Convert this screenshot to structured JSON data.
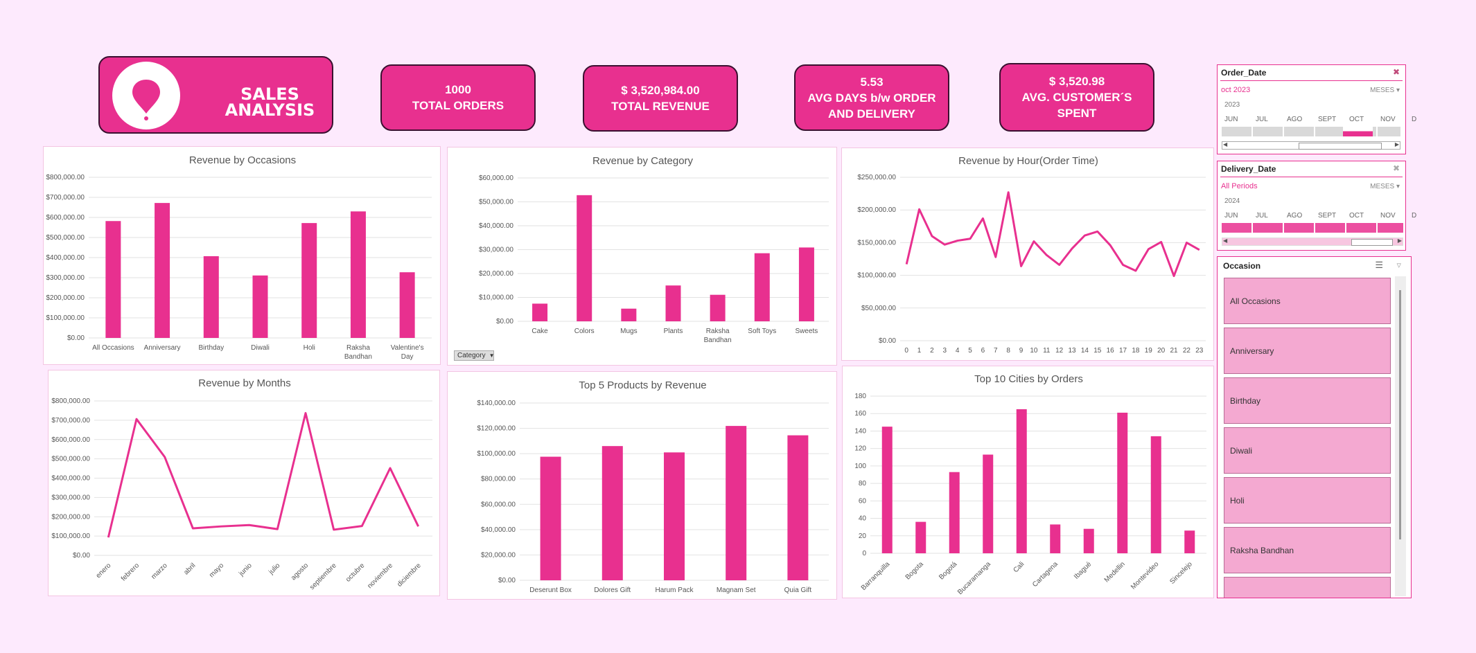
{
  "header": {
    "title": "SALES ANALYSIS",
    "colors": {
      "accent": "#e8308f",
      "background": "#fdeafd",
      "dark_border": "#3a1030"
    },
    "logo_icon": "map-pin-icon"
  },
  "kpis": {
    "orders": {
      "value": "1000",
      "label": "TOTAL ORDERS"
    },
    "revenue": {
      "value": "$ 3,520,984.00",
      "label": "TOTAL REVENUE"
    },
    "days": {
      "value": "5.53",
      "label1": "AVG DAYS b/w ORDER",
      "label2": "AND DELIVERY"
    },
    "spent": {
      "value": "$ 3,520.98",
      "label1": "AVG. CUSTOMER´S",
      "label2": "SPENT"
    }
  },
  "chart_data": [
    {
      "id": "occasions",
      "type": "bar",
      "title": "Revenue by Occasions",
      "categories": [
        "All Occasions",
        "Anniversary",
        "Birthday",
        "Diwali",
        "Holi",
        "Raksha Bandhan",
        "Valentine's Day"
      ],
      "values": [
        582000,
        672000,
        407000,
        311000,
        572000,
        630000,
        327000
      ],
      "yticks": [
        "$0.00",
        "$100,000.00",
        "$200,000.00",
        "$300,000.00",
        "$400,000.00",
        "$500,000.00",
        "$600,000.00",
        "$700,000.00",
        "$800,000.00"
      ],
      "ylim": [
        0,
        800000
      ]
    },
    {
      "id": "category",
      "type": "bar",
      "title": "Revenue by Category",
      "categories": [
        "Cake",
        "Colors",
        "Mugs",
        "Plants",
        "Raksha Bandhan",
        "Soft Toys",
        "Sweets"
      ],
      "values": [
        7400,
        52800,
        5300,
        15000,
        11100,
        28500,
        30900
      ],
      "yticks": [
        "$0.00",
        "$10,000.00",
        "$20,000.00",
        "$30,000.00",
        "$40,000.00",
        "$50,000.00",
        "$60,000.00"
      ],
      "ylim": [
        0,
        60000
      ],
      "filter_button": "Category"
    },
    {
      "id": "hour",
      "type": "line",
      "title": "Revenue by Hour(Order Time)",
      "categories": [
        "0",
        "1",
        "2",
        "3",
        "4",
        "5",
        "6",
        "7",
        "8",
        "9",
        "10",
        "11",
        "12",
        "13",
        "14",
        "15",
        "16",
        "17",
        "18",
        "19",
        "20",
        "21",
        "22",
        "23"
      ],
      "values": [
        117000,
        201000,
        160000,
        147000,
        153000,
        156000,
        187000,
        128000,
        227000,
        114000,
        152000,
        131000,
        116000,
        141000,
        161000,
        167000,
        146000,
        116000,
        107000,
        140000,
        151000,
        99000,
        150000,
        139000
      ],
      "yticks": [
        "$0.00",
        "$50,000.00",
        "$100,000.00",
        "$150,000.00",
        "$200,000.00",
        "$250,000.00"
      ],
      "ylim": [
        0,
        250000
      ]
    },
    {
      "id": "months",
      "type": "line",
      "title": "Revenue by Months",
      "categories": [
        "enero",
        "febrero",
        "marzo",
        "abril",
        "mayo",
        "junio",
        "julio",
        "agosto",
        "septiembre",
        "octubre",
        "noviembre",
        "diciembre"
      ],
      "values": [
        93000,
        706000,
        510000,
        140000,
        150000,
        157000,
        136000,
        737000,
        133000,
        152000,
        452000,
        150000
      ],
      "yticks": [
        "$0.00",
        "$100,000.00",
        "$200,000.00",
        "$300,000.00",
        "$400,000.00",
        "$500,000.00",
        "$600,000.00",
        "$700,000.00",
        "$800,000.00"
      ],
      "ylim": [
        0,
        800000
      ]
    },
    {
      "id": "products",
      "type": "bar",
      "title": "Top 5 Products by Revenue",
      "categories": [
        "Deserunt Box",
        "Dolores Gift",
        "Harum Pack",
        "Magnam Set",
        "Quia Gift"
      ],
      "values": [
        97600,
        106000,
        101000,
        121900,
        114500
      ],
      "yticks": [
        "$0.00",
        "$20,000.00",
        "$40,000.00",
        "$60,000.00",
        "$80,000.00",
        "$100,000.00",
        "$120,000.00",
        "$140,000.00"
      ],
      "ylim": [
        0,
        140000
      ]
    },
    {
      "id": "cities",
      "type": "bar",
      "title": "Top 10 Cities  by Orders",
      "categories": [
        "Barranquilla",
        "Bogota",
        "Bogotá",
        "Bucaramanga",
        "Cali",
        "Cartagena",
        "Ibagué",
        "Medellin",
        "Montevideo",
        "Sincelejo"
      ],
      "values": [
        145,
        36,
        93,
        113,
        165,
        33,
        28,
        161,
        134,
        26
      ],
      "yticks": [
        "0",
        "20",
        "40",
        "60",
        "80",
        "100",
        "120",
        "140",
        "160",
        "180"
      ],
      "ylim": [
        0,
        180
      ]
    }
  ],
  "slicers": {
    "order_date": {
      "title": "Order_Date",
      "selection": "oct 2023",
      "level": "MESES",
      "year": "2023",
      "months": [
        "JUN",
        "JUL",
        "AGO",
        "SEPT",
        "OCT",
        "NOV",
        "D"
      ]
    },
    "delivery_date": {
      "title": "Delivery_Date",
      "selection": "All Periods",
      "level": "MESES",
      "year": "2024",
      "months": [
        "JUN",
        "JUL",
        "AGO",
        "SEPT",
        "OCT",
        "NOV",
        "D"
      ]
    },
    "occasion": {
      "title": "Occasion",
      "items": [
        "All Occasions",
        "Anniversary",
        "Birthday",
        "Diwali",
        "Holi",
        "Raksha Bandhan"
      ]
    }
  }
}
